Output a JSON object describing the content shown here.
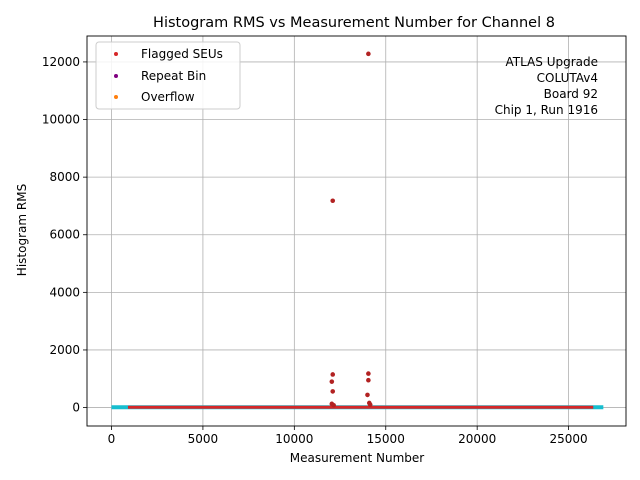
{
  "chart_data": {
    "type": "scatter",
    "title": "Histogram RMS vs Measurement Number for Channel 8",
    "xlabel": "Measurement Number",
    "ylabel": "Histogram RMS",
    "xlim": [
      -1340,
      28140
    ],
    "ylim": [
      -640,
      12900
    ],
    "xticks": [
      0,
      5000,
      10000,
      15000,
      20000,
      25000
    ],
    "yticks": [
      0,
      2000,
      4000,
      6000,
      8000,
      10000,
      12000
    ],
    "grid": true,
    "legend_position": "top-left",
    "annotation": [
      "ATLAS Upgrade",
      "COLUTAv4",
      "Board 92",
      "Chip 1, Run 1916"
    ],
    "baseline": {
      "x_start": 0,
      "x_end": 26900,
      "y": 10,
      "color": "#17becf"
    },
    "baseline_flagged": {
      "x_start": 900,
      "x_end": 26350,
      "y": 10,
      "color": "#d62728"
    },
    "series": [
      {
        "name": "Flagged SEUs",
        "color": "#d62728",
        "points": [
          {
            "x": 14050,
            "y": 12280
          },
          {
            "x": 12100,
            "y": 7180
          },
          {
            "x": 12100,
            "y": 1150
          },
          {
            "x": 14050,
            "y": 1180
          },
          {
            "x": 12050,
            "y": 900
          },
          {
            "x": 14050,
            "y": 950
          },
          {
            "x": 12100,
            "y": 560
          },
          {
            "x": 14000,
            "y": 440
          },
          {
            "x": 12050,
            "y": 130
          },
          {
            "x": 14100,
            "y": 160
          },
          {
            "x": 12150,
            "y": 80
          },
          {
            "x": 14150,
            "y": 100
          }
        ]
      },
      {
        "name": "Repeat Bin",
        "color": "#800080",
        "points": []
      },
      {
        "name": "Overflow",
        "color": "#ff7f0e",
        "points": []
      }
    ]
  }
}
